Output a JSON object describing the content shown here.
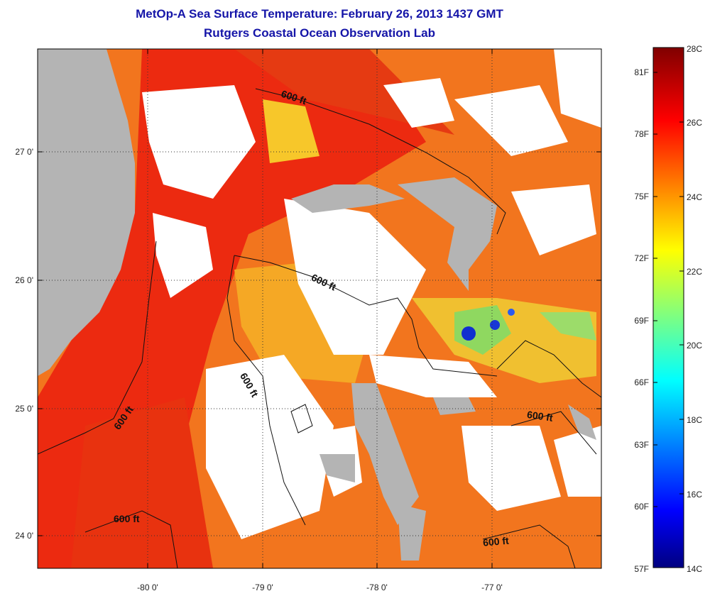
{
  "header": {
    "title": "MetOp-A Sea Surface Temperature:  February 26, 2013 1437 GMT",
    "subtitle": "Rutgers Coastal Ocean Observation Lab"
  },
  "axes": {
    "lon_labels": [
      "-80 0'",
      "-79 0'",
      "-78 0'",
      "-77 0'"
    ],
    "lat_labels": [
      "27 0'",
      "26 0'",
      "25 0'",
      "24 0'"
    ],
    "grid": "dotted"
  },
  "contours": {
    "label": "600 ft"
  },
  "colorbar": {
    "celsius_labels": [
      "28C",
      "26C",
      "24C",
      "22C",
      "20C",
      "18C",
      "16C",
      "14C"
    ],
    "fahrenheit_labels": [
      "81F",
      "78F",
      "75F",
      "72F",
      "69F",
      "66F",
      "63F",
      "60F",
      "57F"
    ],
    "colormap": "jet",
    "range_c": [
      14,
      28
    ]
  },
  "colors": {
    "land": "#b4b4b4",
    "cloud": "#ffffff",
    "warm": "#ec2a10",
    "orange": "#f2751e",
    "title": "#1515a8"
  }
}
